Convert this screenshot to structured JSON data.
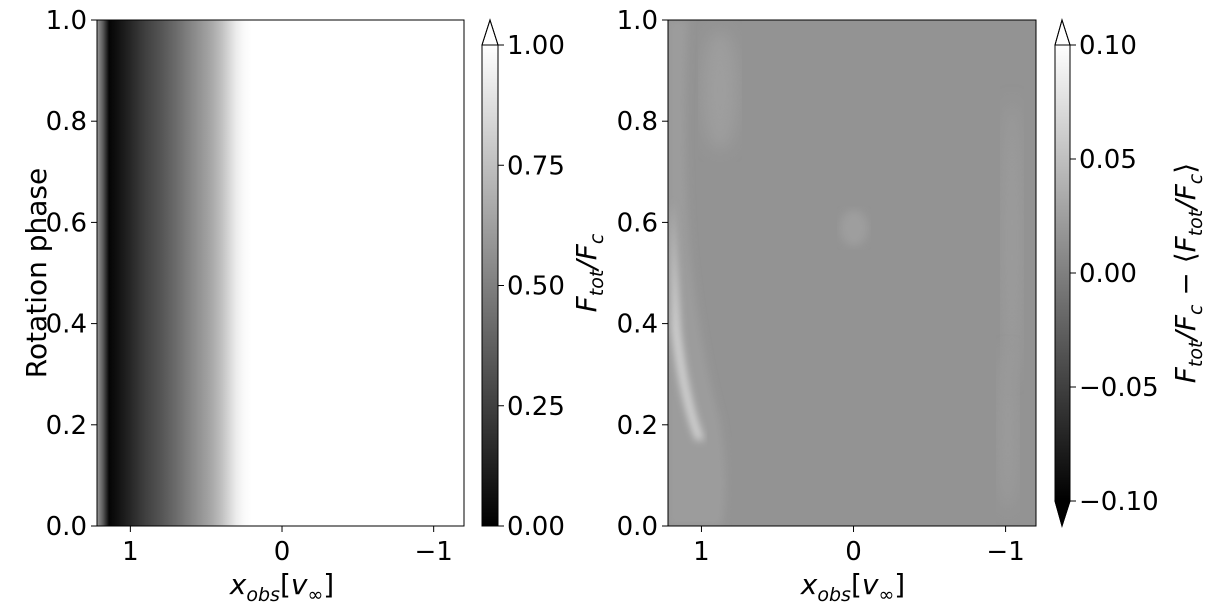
{
  "chart_data": [
    {
      "type": "heatmap",
      "title": "",
      "xlabel": "x_obs[v_∞]",
      "ylabel": "Rotation phase",
      "xlim": [
        1.22,
        -1.2
      ],
      "ylim": [
        0.0,
        1.0
      ],
      "x_ticks": [
        1,
        0,
        -1
      ],
      "x_tick_labels": [
        "1",
        "0",
        "−1"
      ],
      "y_ticks": [
        0.0,
        0.2,
        0.4,
        0.6,
        0.8,
        1.0
      ],
      "y_tick_labels": [
        "0.0",
        "0.2",
        "0.4",
        "0.6",
        "0.8",
        "1.0"
      ],
      "colormap": "gray",
      "profile": {
        "x": [
          1.22,
          1.18,
          1.14,
          1.1,
          1.0,
          0.9,
          0.8,
          0.7,
          0.6,
          0.5,
          0.45,
          0.4,
          0.35,
          0.3,
          0.25,
          0.2,
          0.1,
          -1.2
        ],
        "value": [
          0.6,
          0.35,
          0.02,
          0.05,
          0.15,
          0.25,
          0.33,
          0.42,
          0.52,
          0.62,
          0.68,
          0.75,
          0.84,
          0.93,
          0.98,
          1.0,
          1.0,
          1.0
        ]
      },
      "colorbar": {
        "label": "F_tot/F_c",
        "range": [
          0.0,
          1.0
        ],
        "ticks": [
          0.0,
          0.25,
          0.5,
          0.75,
          1.0
        ],
        "tick_labels": [
          "0.00",
          "0.25",
          "0.50",
          "0.75",
          "1.00"
        ],
        "extend": "max"
      }
    },
    {
      "type": "heatmap",
      "title": "",
      "xlabel": "x_obs[v_∞]",
      "ylabel": "",
      "xlim": [
        1.22,
        -1.2
      ],
      "ylim": [
        0.0,
        1.0
      ],
      "x_ticks": [
        1,
        0,
        -1
      ],
      "x_tick_labels": [
        "1",
        "0",
        "−1"
      ],
      "y_ticks": [
        0.0,
        0.2,
        0.4,
        0.6,
        0.8,
        1.0
      ],
      "y_tick_labels": [
        "0.0",
        "0.2",
        "0.4",
        "0.6",
        "0.8",
        "1.0"
      ],
      "colormap": "gray",
      "background_value": -0.003,
      "features": [
        {
          "x": 1.12,
          "phase": 0.5,
          "value": 0.04
        },
        {
          "x": 1.0,
          "phase": 0.5,
          "value": 0.01
        },
        {
          "x": 0.0,
          "phase": 0.58,
          "value": 0.005
        },
        {
          "x": -1.0,
          "phase": 0.6,
          "value": 0.005
        }
      ],
      "colorbar": {
        "label": "F_tot/F_c − ⟨F_tot/F_c⟩",
        "range": [
          -0.1,
          0.1
        ],
        "ticks": [
          -0.1,
          -0.05,
          0.0,
          0.05,
          0.1
        ],
        "tick_labels": [
          "−0.10",
          "−0.05",
          "0.00",
          "0.05",
          "0.10"
        ],
        "extend": "both"
      }
    }
  ],
  "labels": {
    "ylabel_left": "Rotation phase",
    "xlabel_base": "x",
    "xlabel_sub": "obs",
    "xlabel_bracket_open": "[",
    "xlabel_v": "v",
    "xlabel_v_sub": "∞",
    "xlabel_bracket_close": "]",
    "cb1_F": "F",
    "cb1_tot": "tot",
    "cb1_slash": "/",
    "cb1_Fc": "F",
    "cb1_c": "c",
    "cb2_F": "F",
    "cb2_tot": "tot",
    "cb2_slash": "/",
    "cb2_Fc": "F",
    "cb2_c": "c",
    "cb2_minus": " − ⟨",
    "cb2_F2": "F",
    "cb2_tot2": "tot",
    "cb2_slash2": "/",
    "cb2_Fc2": "F",
    "cb2_c2": "c",
    "cb2_close": "⟩"
  }
}
